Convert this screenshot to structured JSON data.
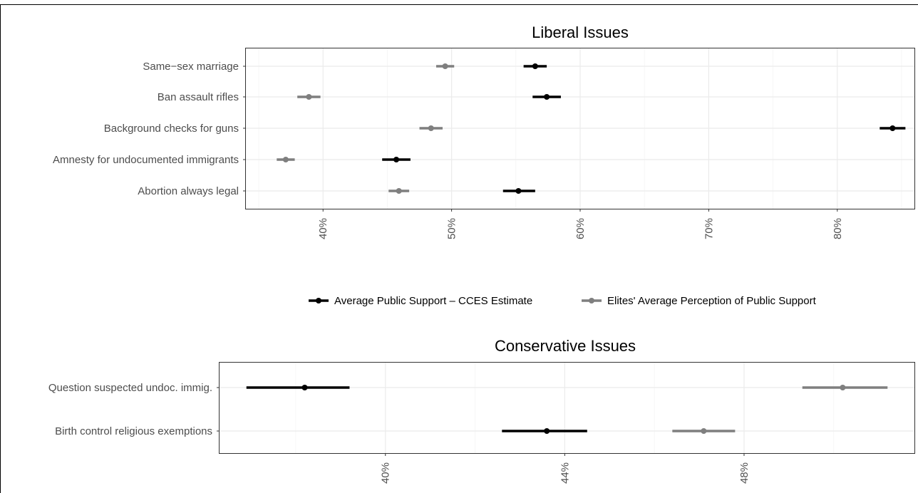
{
  "colors": {
    "public": "#000000",
    "elite": "#7f7f7f"
  },
  "legend": {
    "public_label": "Average Public Support – CCES Estimate",
    "elite_label": "Elites' Average Perception of Public Support"
  },
  "chart_data": [
    {
      "type": "dot-interval",
      "title": "Liberal Issues",
      "xlim": [
        34,
        86
      ],
      "xticks": [
        "40%",
        "50%",
        "60%",
        "70%",
        "80%"
      ],
      "categories": [
        "Same−sex marriage",
        "Ban assault rifles",
        "Background checks for guns",
        "Amnesty for undocumented immigrants",
        "Abortion always legal"
      ],
      "series": [
        {
          "name": "Average Public Support – CCES Estimate",
          "values": [
            56.5,
            57.4,
            84.3,
            45.7,
            55.2
          ],
          "low": [
            55.6,
            56.3,
            83.3,
            44.6,
            54.0
          ],
          "high": [
            57.4,
            58.5,
            85.3,
            46.8,
            56.5
          ]
        },
        {
          "name": "Elites' Average Perception of Public Support",
          "values": [
            49.5,
            38.9,
            48.4,
            37.1,
            45.9
          ],
          "low": [
            48.8,
            38.0,
            47.5,
            36.4,
            45.1
          ],
          "high": [
            50.2,
            39.8,
            49.3,
            37.8,
            46.7
          ]
        }
      ]
    },
    {
      "type": "dot-interval",
      "title": "Conservative Issues",
      "xlim": [
        36.3,
        51.8
      ],
      "xticks": [
        "40%",
        "44%",
        "48%"
      ],
      "categories": [
        "Question suspected undoc. immig.",
        "Birth control religious exemptions"
      ],
      "series": [
        {
          "name": "Average Public Support – CCES Estimate",
          "values": [
            38.2,
            43.6
          ],
          "low": [
            36.9,
            42.6
          ],
          "high": [
            39.2,
            44.5
          ]
        },
        {
          "name": "Elites' Average Perception of Public Support",
          "values": [
            50.2,
            47.1
          ],
          "low": [
            49.3,
            46.4
          ],
          "high": [
            51.2,
            47.8
          ]
        }
      ]
    }
  ]
}
